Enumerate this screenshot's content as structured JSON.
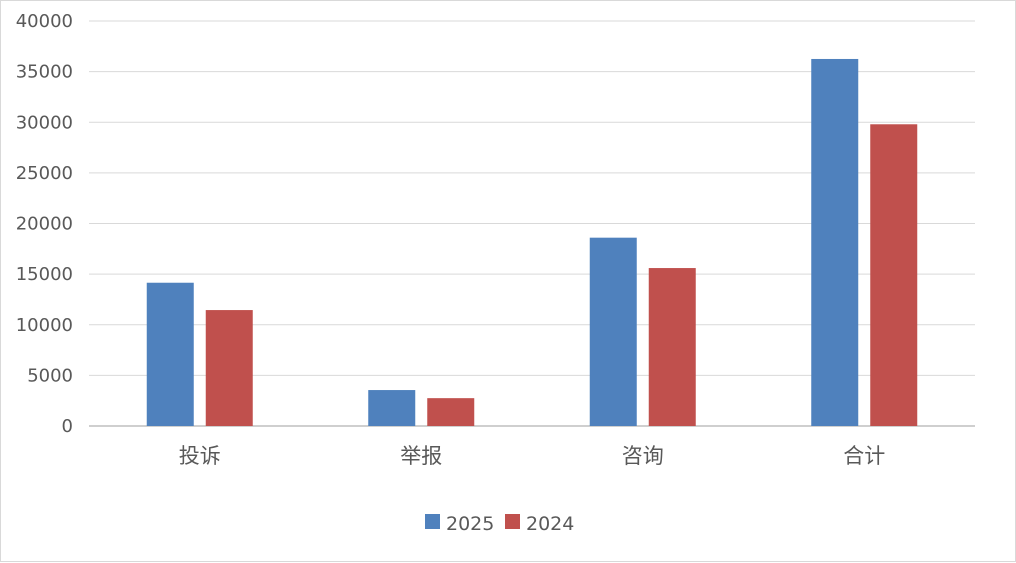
{
  "chart_data": {
    "type": "bar",
    "categories": [
      "投诉",
      "举报",
      "咨询",
      "合计"
    ],
    "series": [
      {
        "name": "2025",
        "color": "#4F81BD",
        "values": [
          14150,
          3550,
          18600,
          36250
        ]
      },
      {
        "name": "2024",
        "color": "#C0504D",
        "values": [
          11450,
          2750,
          15600,
          29800
        ]
      }
    ],
    "ylim": [
      0,
      40000
    ],
    "yticks": [
      0,
      5000,
      10000,
      15000,
      20000,
      25000,
      30000,
      35000,
      40000
    ],
    "title": "",
    "xlabel": "",
    "ylabel": "",
    "grid": true,
    "legend_position": "bottom"
  }
}
